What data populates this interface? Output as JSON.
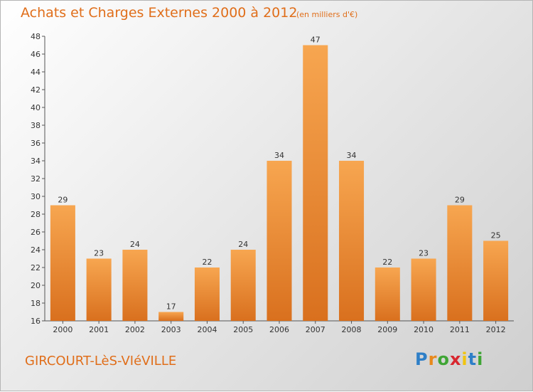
{
  "header": {
    "title": "Achats et Charges Externes 2000 à 2012",
    "subtitle": "(en milliers d'€)"
  },
  "footer": {
    "commune": "GIRCOURT-LèS-VIéVILLE",
    "logo_text": "Proxiti"
  },
  "colors": {
    "bar_top": "#f7a650",
    "bar_bottom": "#d9701e",
    "accent_text": "#e06e1a"
  },
  "chart_data": {
    "type": "bar",
    "title": "Achats et Charges Externes 2000 à 2012",
    "subtitle": "(en milliers d'€)",
    "categories": [
      "2000",
      "2001",
      "2002",
      "2003",
      "2004",
      "2005",
      "2006",
      "2007",
      "2008",
      "2009",
      "2010",
      "2011",
      "2012"
    ],
    "values": [
      29,
      23,
      24,
      17,
      22,
      24,
      34,
      47,
      34,
      22,
      23,
      29,
      25
    ],
    "ylim": [
      16,
      48
    ],
    "yticks": [
      16,
      18,
      20,
      22,
      24,
      26,
      28,
      30,
      32,
      34,
      36,
      38,
      40,
      42,
      44,
      46,
      48
    ],
    "grid": false,
    "legend": "none"
  }
}
